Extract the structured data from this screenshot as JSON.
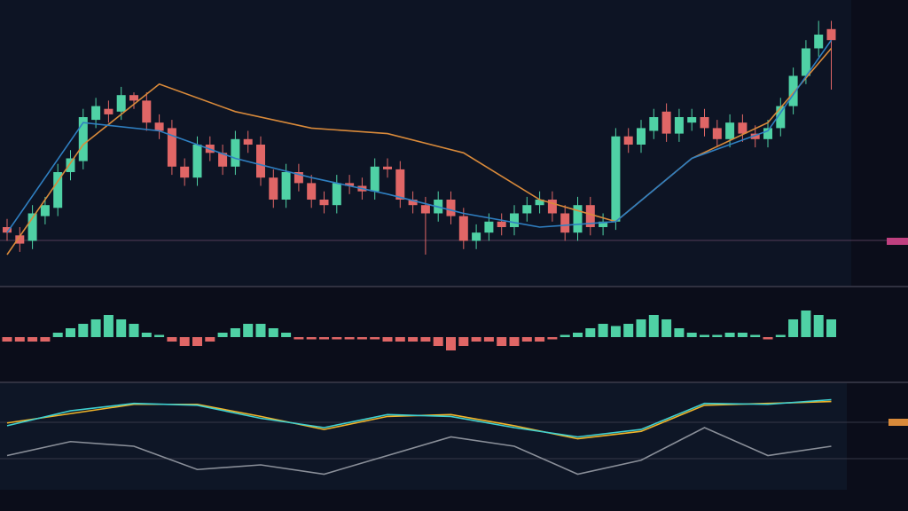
{
  "chart_data": [
    {
      "type": "candlestick",
      "colors": {
        "up": "#4fd1a5",
        "down": "#e06666"
      },
      "ylim": [
        0,
        100
      ],
      "open": [
        20,
        17,
        15,
        24,
        27,
        40,
        44,
        59,
        63,
        62,
        68,
        66,
        58,
        56,
        42,
        38,
        50,
        47,
        42,
        52,
        50,
        38,
        30,
        40,
        36,
        30,
        28,
        36,
        35,
        33,
        42,
        41,
        30,
        28,
        25,
        30,
        24,
        15,
        18,
        22,
        20,
        25,
        28,
        30,
        25,
        18,
        28,
        20,
        22,
        53,
        50,
        55,
        62,
        54,
        58,
        60,
        56,
        52,
        58,
        54,
        52,
        56,
        64,
        75,
        85,
        92
      ],
      "close": [
        18,
        14,
        25,
        28,
        40,
        45,
        60,
        64,
        61,
        68,
        66,
        58,
        55,
        42,
        38,
        50,
        47,
        42,
        52,
        50,
        38,
        30,
        40,
        36,
        30,
        28,
        36,
        35,
        33,
        42,
        41,
        30,
        28,
        25,
        30,
        24,
        15,
        18,
        22,
        20,
        25,
        28,
        30,
        25,
        18,
        28,
        20,
        22,
        53,
        50,
        56,
        60,
        54,
        60,
        60,
        56,
        52,
        58,
        54,
        52,
        56,
        64,
        75,
        85,
        90,
        88
      ],
      "high": [
        23,
        20,
        28,
        31,
        43,
        48,
        63,
        67,
        66,
        71,
        69,
        69,
        61,
        59,
        45,
        53,
        53,
        50,
        55,
        55,
        53,
        41,
        43,
        43,
        39,
        33,
        39,
        39,
        38,
        45,
        45,
        44,
        33,
        31,
        33,
        33,
        27,
        21,
        25,
        25,
        28,
        31,
        33,
        33,
        28,
        31,
        31,
        25,
        56,
        56,
        59,
        63,
        65,
        63,
        63,
        63,
        59,
        61,
        61,
        57,
        59,
        67,
        78,
        88,
        95,
        95
      ],
      "low": [
        15,
        11,
        12,
        21,
        24,
        37,
        41,
        56,
        58,
        59,
        63,
        55,
        52,
        39,
        35,
        35,
        44,
        39,
        39,
        47,
        35,
        27,
        27,
        33,
        27,
        25,
        25,
        32,
        30,
        30,
        38,
        27,
        25,
        10,
        22,
        21,
        12,
        12,
        15,
        17,
        17,
        22,
        25,
        22,
        15,
        15,
        17,
        17,
        19,
        47,
        47,
        52,
        51,
        51,
        55,
        53,
        49,
        49,
        51,
        49,
        49,
        53,
        61,
        72,
        82,
        70
      ]
    },
    {
      "type": "line",
      "ylim": [
        0,
        100
      ],
      "x": [
        0,
        6,
        12,
        18,
        24,
        30,
        36,
        42,
        48,
        54,
        60,
        65
      ],
      "series": [
        {
          "color": "#d98a3a",
          "values": [
            10,
            50,
            72,
            62,
            56,
            54,
            47,
            30,
            22,
            45,
            58,
            85
          ]
        },
        {
          "color": "#2f7fc1",
          "values": [
            18,
            58,
            55,
            45,
            38,
            32,
            25,
            20,
            22,
            45,
            55,
            88
          ]
        }
      ]
    },
    {
      "type": "histogram",
      "colors": {
        "up": "#4fd1a5",
        "down": "#e06666"
      },
      "ylim": [
        -8,
        8
      ],
      "values": [
        -1,
        -1,
        -1,
        -1,
        1,
        2,
        3,
        4,
        5,
        4,
        3,
        1,
        0.5,
        -1,
        -2,
        -2,
        -1,
        1,
        2,
        3,
        3,
        2,
        1,
        -0.5,
        -0.5,
        -0.5,
        -0.5,
        -0.5,
        -0.5,
        -0.5,
        -1,
        -1,
        -1,
        -1,
        -2,
        -3,
        -2,
        -1,
        -1,
        -2,
        -2,
        -1,
        -1,
        -0.5,
        0.5,
        1,
        2,
        3,
        2.5,
        3,
        4,
        5,
        4,
        2,
        1,
        0.5,
        0.5,
        1,
        1,
        0.5,
        -0.5,
        0.5,
        4,
        6,
        5,
        4
      ]
    },
    {
      "type": "line",
      "ylim": [
        0,
        100
      ],
      "x": [
        0,
        5,
        10,
        15,
        20,
        25,
        30,
        35,
        40,
        45,
        50,
        55,
        60,
        65
      ],
      "series": [
        {
          "color": "#f0b429",
          "values": [
            65,
            75,
            85,
            85,
            72,
            58,
            72,
            74,
            62,
            48,
            56,
            84,
            86,
            88
          ]
        },
        {
          "color": "#3fd0d0",
          "values": [
            62,
            78,
            86,
            84,
            70,
            60,
            74,
            72,
            60,
            50,
            58,
            86,
            85,
            90
          ]
        },
        {
          "color": "#8a8f99",
          "values": [
            30,
            45,
            40,
            15,
            20,
            10,
            30,
            50,
            40,
            10,
            25,
            60,
            30,
            40
          ]
        }
      ]
    }
  ]
}
